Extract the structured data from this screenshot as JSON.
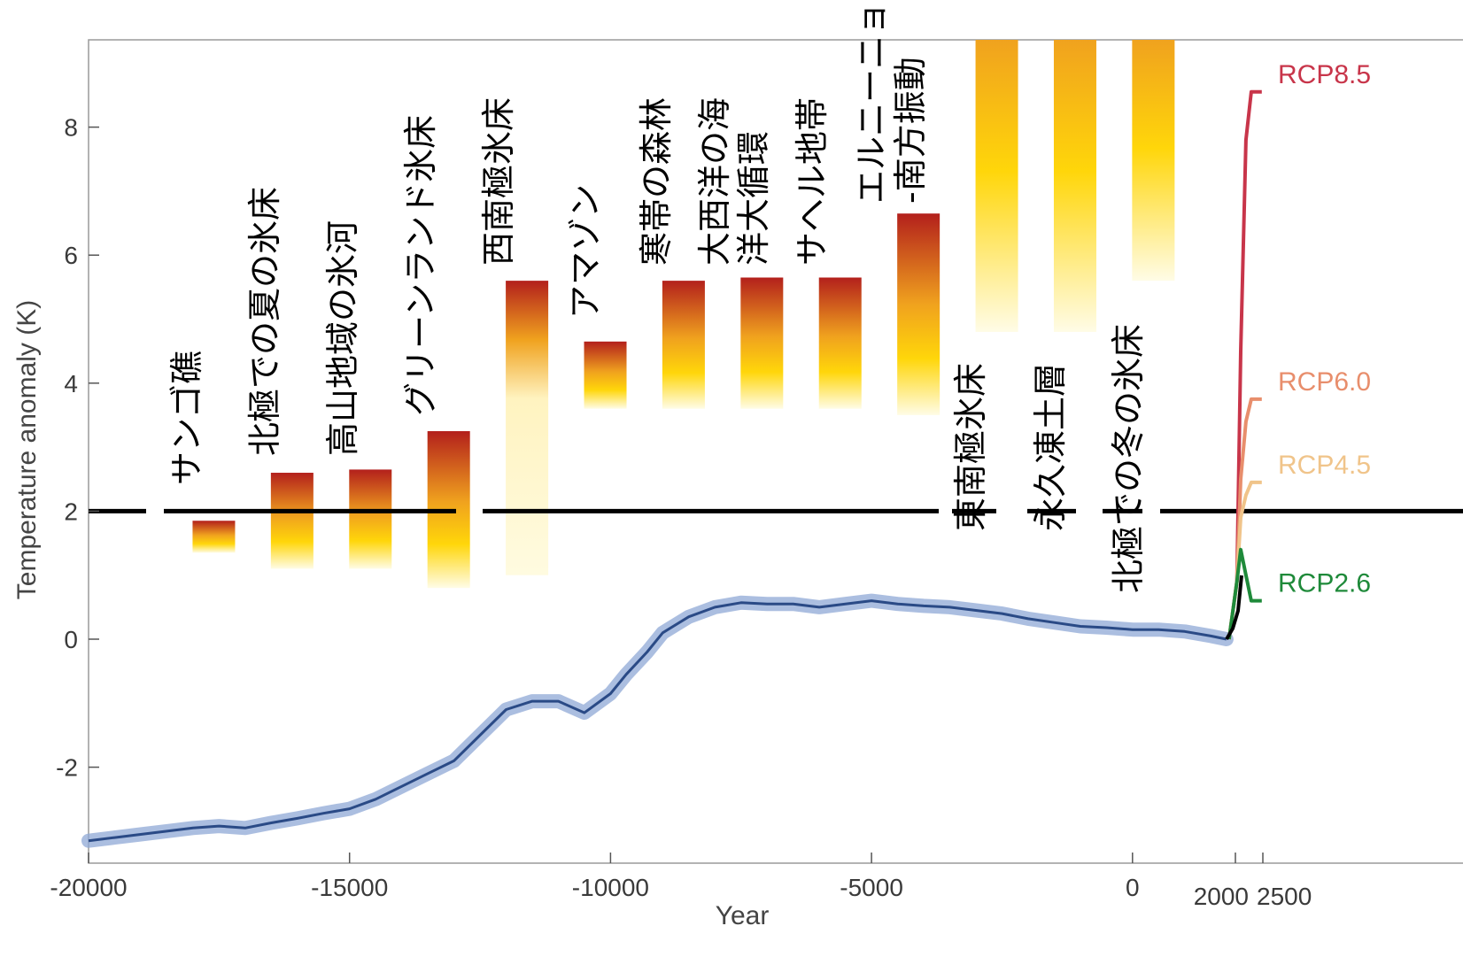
{
  "chart_data": {
    "type": "bar",
    "title": "",
    "xlabel": "Year",
    "ylabel": "Temperature anomaly (K)",
    "ylim": [
      -3.5,
      9.4
    ],
    "y_ticks": [
      "-2",
      "0",
      "2",
      "4",
      "6",
      "8"
    ],
    "x_ticks": [
      "-20000",
      "-15000",
      "-10000",
      "-5000",
      "0",
      "2000",
      "2500"
    ],
    "threshold": 2,
    "tipping_points": [
      {
        "label": "サンゴ礁",
        "low": 1.35,
        "high": 1.85,
        "year": -17600
      },
      {
        "label": "北極での夏の氷床",
        "low": 1.1,
        "high": 2.6,
        "year": -16100
      },
      {
        "label": "高山地域の氷河",
        "low": 1.1,
        "high": 2.65,
        "year": -14600
      },
      {
        "label": "グリーンランド氷床",
        "low": 0.8,
        "high": 3.25,
        "year": -13100
      },
      {
        "label": "西南極氷床",
        "low": 1.0,
        "high": 5.6,
        "year": -11600
      },
      {
        "label": "アマゾン",
        "low": 3.6,
        "high": 4.65,
        "year": -10100
      },
      {
        "label": "寒帯の森林",
        "low": 3.6,
        "high": 5.6,
        "year": -8600
      },
      {
        "label": "大西洋の海洋大循環",
        "low": 3.6,
        "high": 5.65,
        "year": -7100
      },
      {
        "label": "サヘル地帯",
        "low": 3.6,
        "high": 5.65,
        "year": -5600
      },
      {
        "label": "エルニーニョ-南方振動",
        "low": 3.5,
        "high": 6.65,
        "year": -4100
      },
      {
        "label": "東南極氷床",
        "low": 4.8,
        "high": 9.4,
        "year": -2600
      },
      {
        "label": "永久凍土層",
        "low": 4.8,
        "high": 9.4,
        "year": -1100
      },
      {
        "label": "北極での冬の氷床",
        "low": 5.6,
        "high": 9.4,
        "year": 400
      }
    ],
    "series": [
      {
        "name": "",
        "x": [
          -20000,
          -19500,
          -19000,
          -18500,
          -18000,
          -17500,
          -17000,
          -16500,
          -16000,
          -15500,
          -15000,
          -14500,
          -14000,
          -13500,
          -13000,
          -12500,
          -12000,
          -11500,
          -11000,
          -10500,
          -10000,
          -9700,
          -9300,
          -9000,
          -8500,
          -8000,
          -7500,
          -7000,
          -6500,
          -6000,
          -5500,
          -5000,
          -4500,
          -4000,
          -3500,
          -3000,
          -2500,
          -2000,
          -1500,
          -1000,
          -500,
          0,
          500,
          1000,
          1500,
          1800
        ],
        "y": [
          -3.15,
          -3.1,
          -3.05,
          -3.0,
          -2.95,
          -2.92,
          -2.95,
          -2.87,
          -2.8,
          -2.72,
          -2.65,
          -2.5,
          -2.3,
          -2.1,
          -1.9,
          -1.5,
          -1.1,
          -0.97,
          -0.97,
          -1.15,
          -0.85,
          -0.55,
          -0.2,
          0.1,
          0.35,
          0.5,
          0.57,
          0.55,
          0.55,
          0.5,
          0.55,
          0.6,
          0.55,
          0.52,
          0.5,
          0.45,
          0.4,
          0.32,
          0.26,
          0.2,
          0.18,
          0.15,
          0.15,
          0.12,
          0.05,
          0.0
        ]
      },
      {
        "name": "RCP8.5",
        "x": [
          1850,
          2000,
          2100,
          2200,
          2300,
          2500
        ],
        "y": [
          0,
          0.9,
          4.5,
          7.8,
          8.55,
          8.55
        ],
        "color": "#c8354a"
      },
      {
        "name": "RCP6.0",
        "x": [
          1850,
          2000,
          2100,
          2200,
          2300,
          2500
        ],
        "y": [
          0,
          0.9,
          2.5,
          3.4,
          3.75,
          3.75
        ],
        "color": "#e88e6c"
      },
      {
        "name": "RCP4.5",
        "x": [
          1850,
          2000,
          2100,
          2200,
          2300,
          2500
        ],
        "y": [
          0,
          0.9,
          1.9,
          2.25,
          2.45,
          2.45
        ],
        "color": "#f0c48a"
      },
      {
        "name": "RCP2.6",
        "x": [
          1850,
          2000,
          2100,
          2200,
          2300,
          2500
        ],
        "y": [
          0,
          0.9,
          1.4,
          1.0,
          0.6,
          0.6
        ],
        "color": "#1f8a3a"
      }
    ],
    "grid": false,
    "legend": "right"
  }
}
